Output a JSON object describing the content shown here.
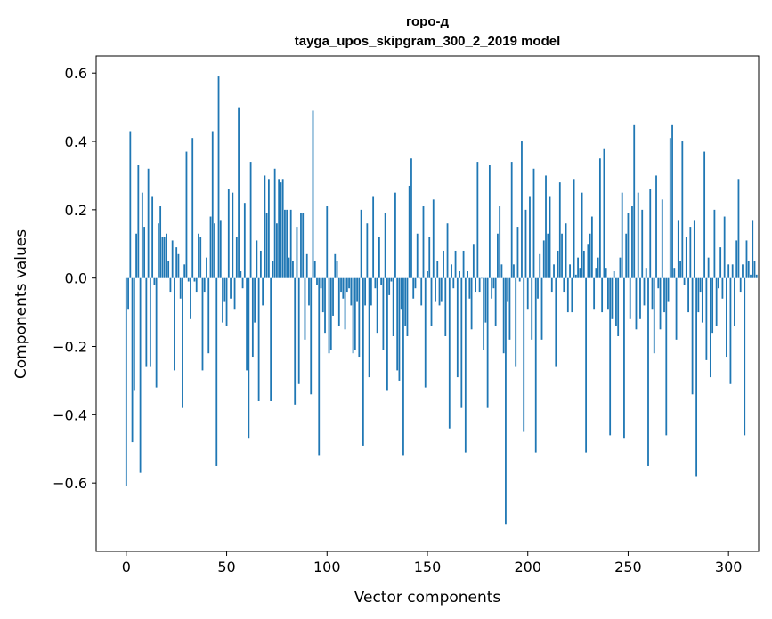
{
  "chart_data": {
    "type": "bar",
    "title": "горо-д",
    "subtitle": "tayga_upos_skipgram_300_2_2019 model",
    "xlabel": "Vector components",
    "ylabel": "Components values",
    "xlim": [
      -15,
      315
    ],
    "ylim": [
      -0.8,
      0.65
    ],
    "xticks": [
      0,
      50,
      100,
      150,
      200,
      250,
      300
    ],
    "yticks": [
      -0.6,
      -0.4,
      -0.2,
      0.0,
      0.2,
      0.4,
      0.6
    ],
    "xtick_labels": [
      "0",
      "50",
      "100",
      "150",
      "200",
      "250",
      "300"
    ],
    "ytick_labels": [
      "−0.6",
      "−0.4",
      "−0.2",
      "0.0",
      "0.2",
      "0.4",
      "0.6"
    ],
    "bar_color": "#1f77b4",
    "grid": false,
    "values": [
      -0.61,
      -0.09,
      0.43,
      -0.48,
      -0.33,
      0.13,
      0.33,
      -0.57,
      0.25,
      0.15,
      -0.26,
      0.32,
      -0.26,
      0.24,
      -0.02,
      -0.32,
      0.16,
      0.21,
      0.12,
      0.12,
      0.13,
      0.05,
      -0.04,
      0.11,
      -0.27,
      0.09,
      0.07,
      -0.06,
      -0.38,
      0.04,
      0.37,
      -0.01,
      -0.12,
      0.41,
      -0.01,
      -0.04,
      0.13,
      0.12,
      -0.27,
      -0.04,
      0.06,
      -0.22,
      0.18,
      0.43,
      0.16,
      -0.55,
      0.59,
      0.17,
      -0.13,
      -0.07,
      -0.14,
      0.26,
      -0.06,
      0.25,
      -0.09,
      0.12,
      0.5,
      0.02,
      -0.03,
      0.22,
      -0.27,
      -0.47,
      0.34,
      -0.23,
      -0.13,
      0.11,
      -0.36,
      0.08,
      -0.08,
      0.3,
      0.19,
      0.29,
      -0.36,
      0.05,
      0.32,
      0.16,
      0.29,
      0.28,
      0.29,
      0.2,
      0.2,
      0.06,
      0.2,
      0.05,
      -0.37,
      0.15,
      -0.31,
      0.19,
      0.19,
      -0.18,
      0.07,
      -0.08,
      -0.34,
      0.49,
      0.05,
      -0.02,
      -0.52,
      -0.03,
      -0.1,
      -0.16,
      0.21,
      -0.22,
      -0.21,
      -0.11,
      0.07,
      0.05,
      -0.14,
      -0.04,
      -0.06,
      -0.15,
      -0.04,
      -0.03,
      -0.08,
      -0.22,
      -0.21,
      -0.07,
      -0.23,
      0.2,
      -0.49,
      -0.08,
      0.16,
      -0.29,
      -0.08,
      0.24,
      -0.03,
      -0.16,
      0.12,
      -0.02,
      -0.21,
      0.19,
      -0.33,
      -0.05,
      -0.01,
      -0.17,
      0.25,
      -0.27,
      -0.3,
      -0.09,
      -0.52,
      -0.14,
      -0.17,
      0.27,
      0.35,
      -0.06,
      -0.03,
      0.13,
      0.0,
      -0.08,
      0.21,
      -0.32,
      0.02,
      0.12,
      -0.14,
      0.23,
      -0.07,
      0.05,
      -0.08,
      -0.07,
      0.08,
      -0.17,
      0.16,
      -0.44,
      0.04,
      -0.03,
      0.08,
      -0.29,
      0.02,
      -0.38,
      0.08,
      -0.51,
      0.02,
      -0.06,
      -0.15,
      0.1,
      -0.04,
      0.34,
      -0.04,
      0.0,
      -0.21,
      -0.13,
      -0.38,
      0.33,
      -0.06,
      -0.03,
      -0.14,
      0.13,
      0.21,
      0.04,
      -0.22,
      -0.72,
      -0.07,
      -0.18,
      0.34,
      0.04,
      -0.26,
      0.15,
      -0.01,
      0.4,
      -0.45,
      0.2,
      -0.09,
      0.24,
      -0.18,
      0.32,
      -0.51,
      -0.06,
      0.07,
      -0.18,
      0.11,
      0.3,
      0.13,
      0.24,
      -0.04,
      0.04,
      -0.26,
      0.08,
      0.28,
      0.13,
      -0.04,
      0.16,
      -0.1,
      0.04,
      -0.1,
      0.29,
      0.01,
      0.06,
      0.03,
      0.25,
      0.08,
      -0.51,
      0.1,
      0.13,
      0.18,
      -0.09,
      0.03,
      0.06,
      0.35,
      -0.1,
      0.38,
      0.03,
      -0.09,
      -0.46,
      -0.12,
      0.02,
      -0.14,
      -0.17,
      0.06,
      0.25,
      -0.47,
      0.13,
      0.19,
      -0.12,
      0.21,
      0.45,
      -0.15,
      0.25,
      -0.12,
      0.2,
      -0.08,
      0.03,
      -0.55,
      0.26,
      -0.09,
      -0.22,
      0.3,
      -0.03,
      -0.15,
      0.23,
      -0.1,
      -0.46,
      -0.07,
      0.41,
      0.45,
      0.03,
      -0.18,
      0.17,
      0.05,
      0.4,
      -0.02,
      0.12,
      -0.1,
      0.15,
      -0.34,
      0.17,
      -0.58,
      -0.1,
      -0.04,
      -0.13,
      0.37,
      -0.24,
      0.06,
      -0.29,
      -0.16,
      0.2,
      -0.14,
      -0.03,
      0.09,
      -0.06,
      0.18,
      -0.23,
      0.04,
      -0.31,
      0.04,
      -0.14,
      0.11,
      0.29,
      -0.04,
      0.04,
      -0.46,
      0.11,
      0.05,
      0.01,
      0.17,
      0.05,
      0.01
    ]
  }
}
